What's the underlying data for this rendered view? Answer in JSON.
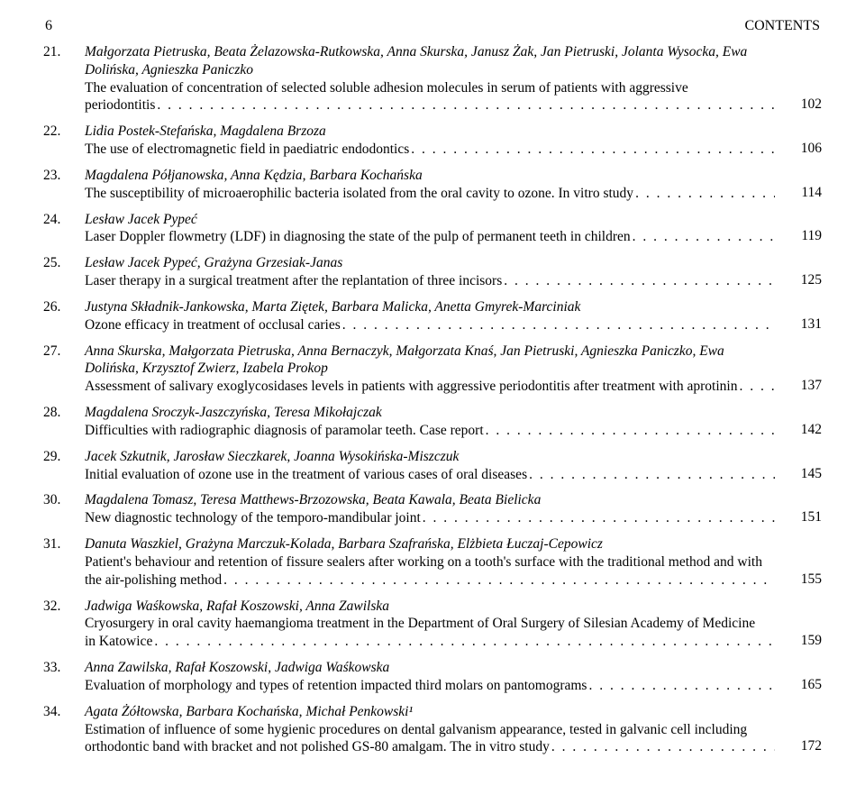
{
  "header": {
    "page_number": "6",
    "running_title": "CONTENTS"
  },
  "entries": [
    {
      "num": "21.",
      "authors": "Małgorzata Pietruska, Beata Żelazowska-Rutkowska, Anna Skurska, Janusz Żak, Jan Pietruski, Jolanta Wysocka, Ewa Dolińska, Agnieszka Paniczko",
      "title_pre": "The evaluation of concentration of selected soluble adhesion molecules in serum of patients with aggressive",
      "title_last": "periodontitis",
      "page": "102"
    },
    {
      "num": "22.",
      "authors": "Lidia Postek-Stefańska, Magdalena Brzoza",
      "title_pre": "",
      "title_last": "The use of electromagnetic field in paediatric endodontics",
      "page": "106"
    },
    {
      "num": "23.",
      "authors": "Magdalena Półjanowska, Anna Kędzia, Barbara Kochańska",
      "title_pre": "",
      "title_last": "The susceptibility of microaerophilic bacteria isolated from the oral cavity to ozone. In vitro study",
      "page": "114"
    },
    {
      "num": "24.",
      "authors": "Lesław Jacek Pypeć",
      "title_pre": "",
      "title_last": "Laser Doppler flowmetry (LDF) in diagnosing the state of the pulp of permanent teeth in children",
      "page": "119"
    },
    {
      "num": "25.",
      "authors": "Lesław Jacek Pypeć, Grażyna Grzesiak-Janas",
      "title_pre": "",
      "title_last": "Laser therapy in a surgical treatment after the replantation of three incisors",
      "page": "125"
    },
    {
      "num": "26.",
      "authors": "Justyna Składnik-Jankowska, Marta Ziętek, Barbara Malicka, Anetta Gmyrek-Marciniak",
      "title_pre": "",
      "title_last": "Ozone efficacy in treatment of occlusal caries",
      "page": "131"
    },
    {
      "num": "27.",
      "authors": "Anna Skurska, Małgorzata Pietruska, Anna Bernaczyk, Małgorzata Knaś, Jan Pietruski, Agnieszka Paniczko, Ewa Dolińska, Krzysztof Zwierz, Izabela Prokop",
      "title_pre": "",
      "title_last": "Assessment of salivary exoglycosidases levels in patients with aggressive periodontitis after treatment with aprotinin",
      "page": "137"
    },
    {
      "num": "28.",
      "authors": "Magdalena Sroczyk-Jaszczyńska, Teresa Mikołajczak",
      "title_pre": "",
      "title_last": "Difficulties with radiographic diagnosis of paramolar teeth. Case report",
      "page": "142"
    },
    {
      "num": "29.",
      "authors": "Jacek Szkutnik, Jarosław Sieczkarek, Joanna Wysokińska-Miszczuk",
      "title_pre": "",
      "title_last": "Initial evaluation of ozone use in the treatment of various cases of oral diseases",
      "page": "145"
    },
    {
      "num": "30.",
      "authors": "Magdalena Tomasz, Teresa Matthews-Brzozowska, Beata Kawala, Beata Bielicka",
      "title_pre": "",
      "title_last": "New diagnostic technology of the temporo-mandibular joint",
      "page": "151"
    },
    {
      "num": "31.",
      "authors": "Danuta Waszkiel, Grażyna Marczuk-Kolada, Barbara Szafrańska, Elżbieta Łuczaj-Cepowicz",
      "title_pre": "Patient's behaviour and retention of fissure sealers after working on a tooth's surface with the traditional method and with",
      "title_last": "the air-polishing method",
      "page": "155"
    },
    {
      "num": "32.",
      "authors": "Jadwiga Waśkowska, Rafał Koszowski, Anna Zawilska",
      "title_pre": "Cryosurgery in oral cavity haemangioma treatment in the Department of Oral Surgery of Silesian Academy of Medicine",
      "title_last": "in Katowice",
      "page": "159"
    },
    {
      "num": "33.",
      "authors": "Anna Zawilska, Rafał Koszowski, Jadwiga Waśkowska",
      "title_pre": "",
      "title_last": "Evaluation of morphology and types of retention impacted third molars on pantomograms",
      "page": "165"
    },
    {
      "num": "34.",
      "authors": "Agata Żółtowska, Barbara Kochańska, Michał Penkowski¹",
      "title_pre": "Estimation of influence of some hygienic procedures on dental galvanism appearance, tested in galvanic cell including",
      "title_last": "orthodontic band with bracket and not polished GS-80 amalgam. The in vitro study",
      "page": "172"
    }
  ]
}
